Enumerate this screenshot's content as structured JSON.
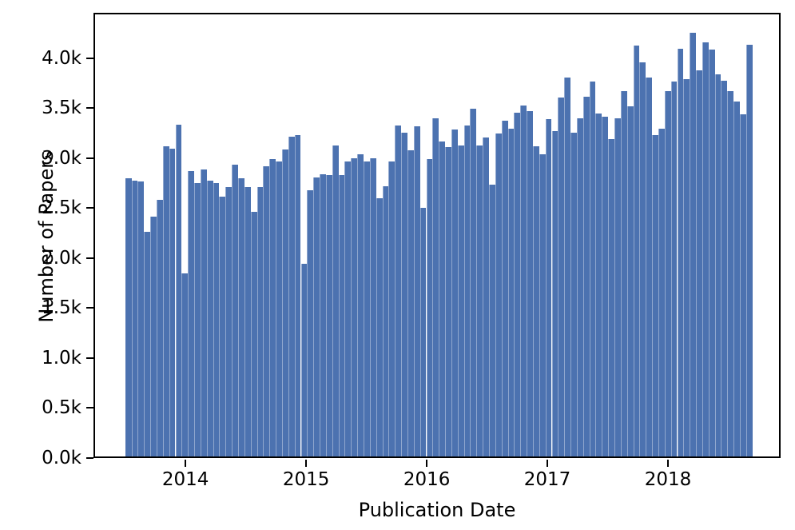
{
  "chart_data": {
    "type": "bar",
    "subtype": "histogram",
    "title": "",
    "xlabel": "Publication Date",
    "ylabel": "Number of Papers",
    "x_range_start": "2013-07",
    "x_range_end": "2018-09",
    "approx_bin_width_days": 19,
    "unit": "thousands of papers",
    "values_thousands": [
      2.78,
      2.76,
      2.75,
      2.25,
      2.4,
      2.57,
      3.1,
      3.08,
      3.32,
      1.83,
      2.85,
      2.73,
      2.87,
      2.76,
      2.73,
      2.6,
      2.69,
      2.92,
      2.78,
      2.69,
      2.45,
      2.69,
      2.9,
      2.97,
      2.95,
      3.07,
      3.2,
      3.21,
      1.93,
      2.66,
      2.79,
      2.82,
      2.81,
      3.11,
      2.81,
      2.95,
      2.98,
      3.02,
      2.95,
      2.98,
      2.58,
      2.7,
      2.95,
      3.31,
      3.24,
      3.06,
      3.3,
      2.49,
      2.97,
      3.38,
      3.15,
      3.09,
      3.27,
      3.11,
      3.31,
      3.48,
      3.11,
      3.19,
      2.72,
      3.23,
      3.36,
      3.28,
      3.44,
      3.51,
      3.45,
      3.1,
      3.02,
      3.37,
      3.25,
      3.59,
      3.79,
      3.24,
      3.38,
      3.6,
      3.75,
      3.43,
      3.4,
      3.17,
      3.38,
      3.65,
      3.5,
      4.11,
      3.94,
      3.79,
      3.21,
      3.28,
      3.65,
      3.75,
      4.08,
      3.77,
      4.24,
      3.86,
      4.14,
      4.07,
      3.82,
      3.76,
      3.65,
      3.55,
      3.42,
      4.12
    ],
    "ylim": [
      0,
      4.42
    ],
    "y_ticks": [
      "0.0k",
      "0.5k",
      "1.0k",
      "1.5k",
      "2.0k",
      "2.5k",
      "3.0k",
      "3.5k",
      "4.0k"
    ],
    "y_tick_values": [
      0,
      0.5,
      1.0,
      1.5,
      2.0,
      2.5,
      3.0,
      3.5,
      4.0
    ],
    "x_tick_labels": [
      "2014",
      "2015",
      "2016",
      "2017",
      "2018"
    ],
    "grid": false,
    "legend": null,
    "bar_color": "#4C72B0",
    "axis_color": "#000000",
    "background_color": "#ffffff"
  }
}
